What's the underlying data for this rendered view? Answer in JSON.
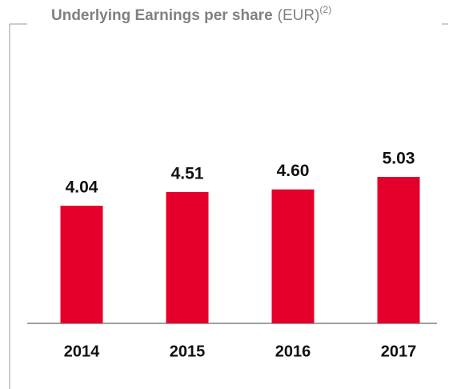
{
  "chart_data": {
    "type": "bar",
    "title": "Underlying Earnings per share",
    "unit": "(EUR)",
    "footnote": "(2)",
    "categories": [
      "2014",
      "2015",
      "2016",
      "2017"
    ],
    "values": [
      4.04,
      4.51,
      4.6,
      5.03
    ],
    "value_labels": [
      "4.04",
      "4.51",
      "4.60",
      "5.03"
    ],
    "color": "#e4002b"
  }
}
